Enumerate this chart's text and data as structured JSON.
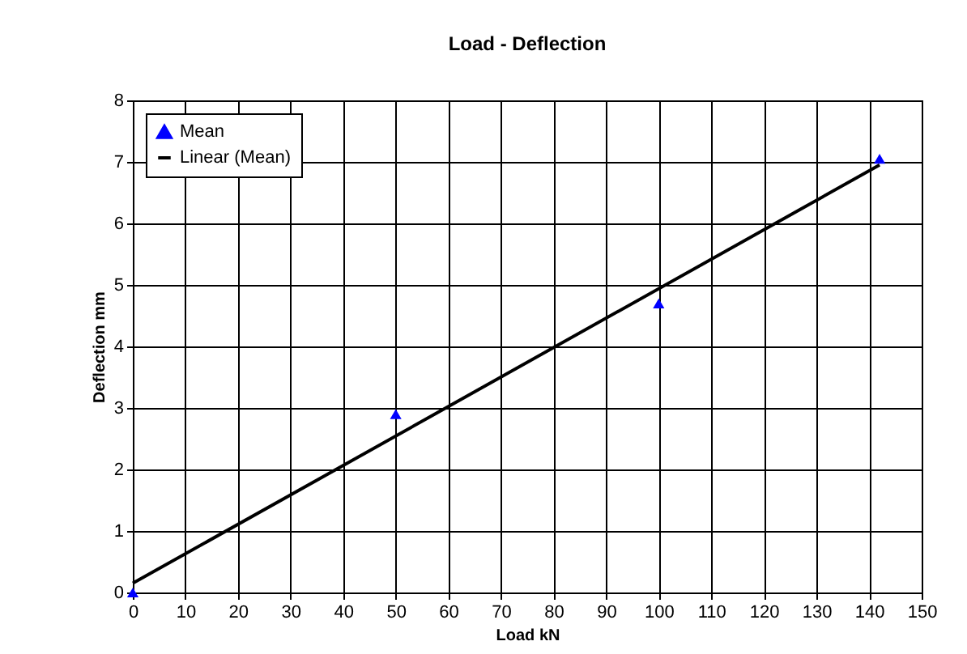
{
  "chart_data": {
    "type": "scatter",
    "title": "Load - Deflection",
    "xlabel": "Load kN",
    "ylabel": "Deflection mm",
    "xlim": [
      0,
      150
    ],
    "xticks": [
      0,
      10,
      20,
      30,
      40,
      50,
      60,
      70,
      80,
      90,
      100,
      110,
      120,
      130,
      140,
      150
    ],
    "ylim": [
      0,
      8
    ],
    "yticks": [
      0,
      1,
      2,
      3,
      4,
      5,
      6,
      7,
      8
    ],
    "grid": true,
    "legend": "top left",
    "series": [
      {
        "name": "Mean",
        "color": "#0000ff",
        "marker": "triangle",
        "x": [
          0,
          50,
          100,
          142
        ],
        "values": [
          0,
          2.9,
          4.7,
          7.05
        ]
      },
      {
        "name": "Linear (Mean)",
        "type": "line",
        "color": "#000000",
        "marker": "none",
        "line_style": "solid",
        "x": [
          0,
          142
        ],
        "values": [
          0.15,
          6.95
        ]
      }
    ]
  }
}
